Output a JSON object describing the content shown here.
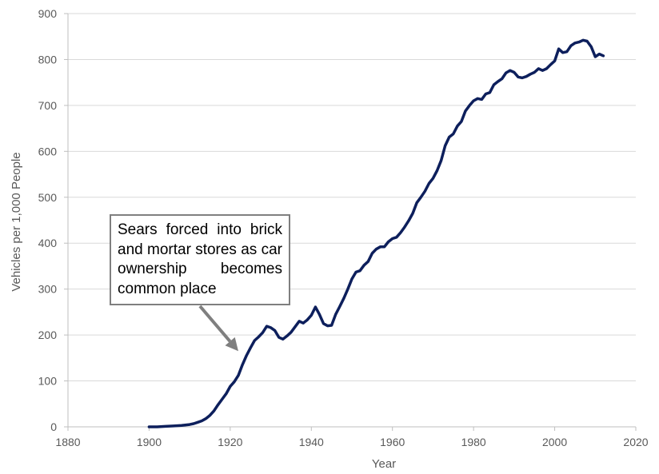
{
  "colors": {
    "line": "#0d1f5c",
    "grid": "#d9d9d9",
    "annotation_border": "#7f7f7f",
    "arrow": "#7f7f7f"
  },
  "chart_data": {
    "type": "line",
    "xlabel": "Year",
    "ylabel": "Vehicles per 1,000 People",
    "xlim": [
      1880,
      2020
    ],
    "ylim": [
      0,
      900
    ],
    "xticks": [
      1880,
      1900,
      1920,
      1940,
      1960,
      1980,
      2000,
      2020
    ],
    "yticks": [
      0,
      100,
      200,
      300,
      400,
      500,
      600,
      700,
      800,
      900
    ],
    "grid": "horizontal",
    "annotation": {
      "text": "Sears forced into brick and mortar stores as car ownership becomes common place",
      "arrow_to": {
        "x": 1922,
        "y": 165
      }
    },
    "series": [
      {
        "x": [
          1900,
          1902,
          1904,
          1906,
          1908,
          1910,
          1911,
          1912,
          1913,
          1914,
          1915,
          1916,
          1917,
          1918,
          1919,
          1920,
          1921,
          1922,
          1923,
          1924,
          1925,
          1926,
          1927,
          1928,
          1929,
          1930,
          1931,
          1932,
          1933,
          1934,
          1935,
          1936,
          1937,
          1938,
          1939,
          1940,
          1941,
          1942,
          1943,
          1944,
          1945,
          1946,
          1947,
          1948,
          1949,
          1950,
          1951,
          1952,
          1953,
          1954,
          1955,
          1956,
          1957,
          1958,
          1959,
          1960,
          1961,
          1962,
          1963,
          1964,
          1965,
          1966,
          1967,
          1968,
          1969,
          1970,
          1971,
          1972,
          1973,
          1974,
          1975,
          1976,
          1977,
          1978,
          1979,
          1980,
          1981,
          1982,
          1983,
          1984,
          1985,
          1986,
          1987,
          1988,
          1989,
          1990,
          1991,
          1992,
          1993,
          1994,
          1995,
          1996,
          1997,
          1998,
          1999,
          2000,
          2001,
          2002,
          2003,
          2004,
          2005,
          2006,
          2007,
          2008,
          2009,
          2010,
          2011,
          2012
        ],
        "y": [
          0,
          0,
          1,
          2,
          3,
          5,
          7,
          10,
          13,
          18,
          25,
          35,
          48,
          60,
          72,
          88,
          98,
          112,
          135,
          155,
          172,
          188,
          196,
          205,
          219,
          216,
          210,
          195,
          191,
          198,
          206,
          218,
          230,
          226,
          233,
          243,
          261,
          245,
          225,
          220,
          221,
          245,
          262,
          280,
          300,
          322,
          337,
          340,
          352,
          360,
          378,
          387,
          392,
          392,
          403,
          410,
          413,
          423,
          435,
          449,
          465,
          488,
          500,
          513,
          530,
          541,
          558,
          580,
          612,
          631,
          638,
          655,
          665,
          688,
          700,
          710,
          715,
          713,
          725,
          728,
          745,
          752,
          758,
          771,
          776,
          772,
          762,
          760,
          763,
          768,
          772,
          780,
          776,
          780,
          789,
          797,
          823,
          815,
          817,
          830,
          836,
          838,
          842,
          840,
          828,
          806,
          812,
          808
        ]
      }
    ]
  }
}
